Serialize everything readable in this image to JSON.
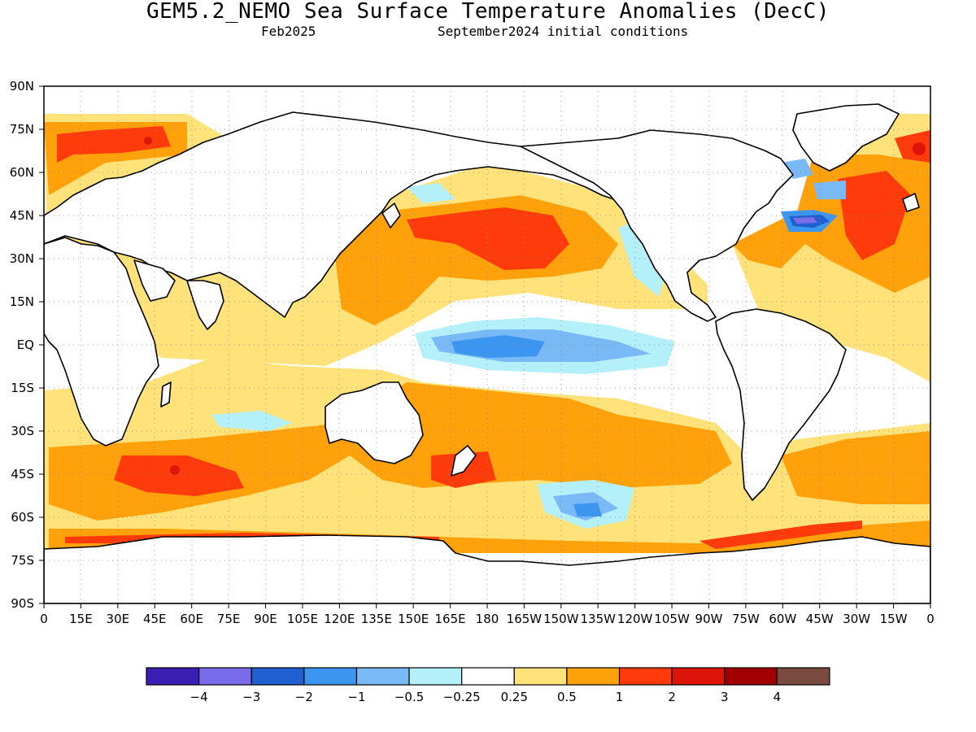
{
  "header": {
    "title": "GEM5.2_NEMO Sea Surface Temperature Anomalies (DecC)",
    "valid_month": "Feb2025",
    "init_note": "September2024 initial conditions"
  },
  "map": {
    "lat_labels": [
      "90N",
      "75N",
      "60N",
      "45N",
      "30N",
      "15N",
      "EQ",
      "15S",
      "30S",
      "45S",
      "60S",
      "75S",
      "90S"
    ],
    "lon_labels": [
      "0",
      "15E",
      "30E",
      "45E",
      "60E",
      "75E",
      "90E",
      "105E",
      "120E",
      "135E",
      "150E",
      "165E",
      "180",
      "165W",
      "150W",
      "135W",
      "120W",
      "105W",
      "90W",
      "75W",
      "60W",
      "45W",
      "30W",
      "15W",
      "0"
    ]
  },
  "legend": {
    "colors": [
      "#3b1fb5",
      "#7b6cec",
      "#1f5fcf",
      "#3c96f0",
      "#78b9f6",
      "#b4f0fa",
      "#ffffff",
      "#ffe27a",
      "#ffa10a",
      "#ff3b0c",
      "#dd1408",
      "#a00000",
      "#7a4a3e"
    ],
    "labels": [
      "−4",
      "−3",
      "−2",
      "−1",
      "−0.5",
      "−0.25",
      "0.25",
      "0.5",
      "1",
      "2",
      "3",
      "4"
    ]
  }
}
